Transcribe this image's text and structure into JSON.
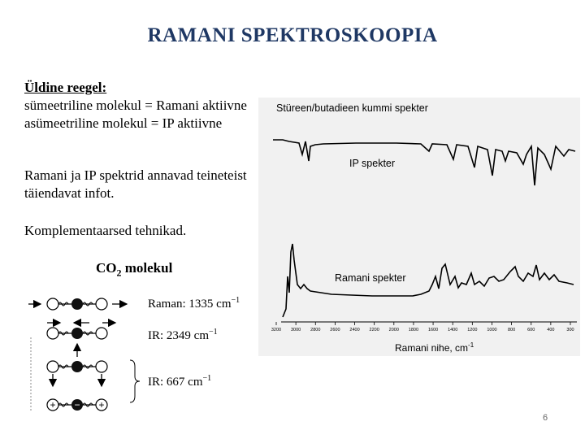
{
  "slide": {
    "title": "RAMANI SPEKTROSKOOPIA",
    "rule_heading": "Üldine reegel:",
    "rule_line1": "sümeetriline molekul = Ramani aktiivne",
    "rule_line2": "asümeetriline molekul = IP aktiivne",
    "info_line1": "Ramani ja IP spektrid annavad teineteist",
    "info_line2": "täiendavat infot.",
    "complementary": "Komplementaarsed tehnikad.",
    "co2_label": "CO",
    "co2_sub": "2",
    "co2_suffix": " molekul",
    "page_number": "6"
  },
  "modes": {
    "raman": "Raman: 1335 cm",
    "ir1": "IR: 2349 cm",
    "ir2": "IR: 667 cm",
    "exp": "−1"
  },
  "spectrum": {
    "title": "Stüreen/butadieen kummi spekter",
    "ir_label": "IP spekter",
    "raman_label": "Ramani spekter",
    "x_axis_label": "Ramani nihe, cm",
    "x_axis_exp": "-1",
    "ticks": [
      "3200",
      "3000",
      "2800",
      "2600",
      "2400",
      "2200",
      "2000",
      "1800",
      "1600",
      "1400",
      "1200",
      "1000",
      "800",
      "600",
      "400",
      "300"
    ]
  },
  "colors": {
    "title": "#1f3864",
    "atom_dark": "#111111",
    "atom_light": "#ffffff"
  }
}
